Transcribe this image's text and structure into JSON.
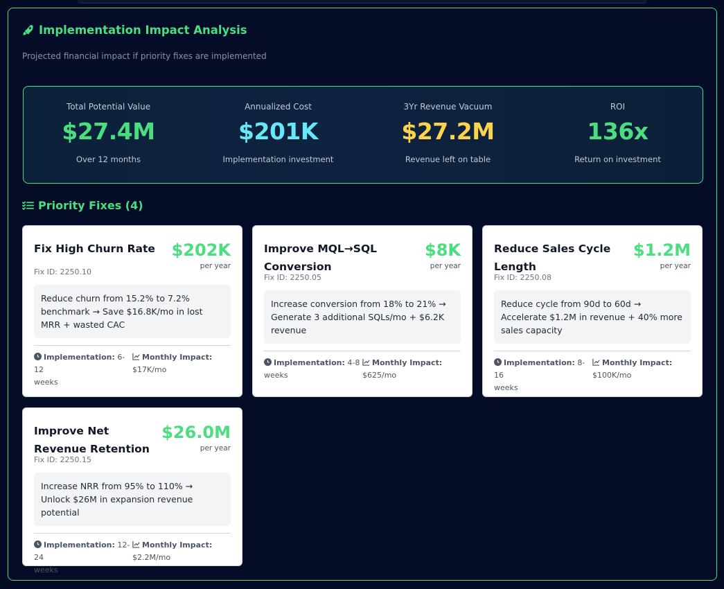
{
  "panel": {
    "title": "Implementation Impact Analysis",
    "subtitle": "Projected financial impact if priority fixes are implemented"
  },
  "metrics": [
    {
      "label": "Total Potential Value",
      "value": "$27.4M",
      "sub": "Over 12 months",
      "color": "#4ade80"
    },
    {
      "label": "Annualized Cost",
      "value": "$201K",
      "sub": "Implementation investment",
      "color": "#67e8f9"
    },
    {
      "label": "3Yr Revenue Vacuum",
      "value": "$27.2M",
      "sub": "Revenue left on table",
      "color": "#fcd34d"
    },
    {
      "label": "ROI",
      "value": "136x",
      "sub": "Return on investment",
      "color": "#4ade80"
    }
  ],
  "priority": {
    "title": "Priority Fixes (4)",
    "per_year": "per year",
    "impl_label": "Implementation:",
    "monthly_label": "Monthly Impact:",
    "fixes": [
      {
        "title": "Fix High Churn Rate",
        "value": "$202K",
        "fix_id": "Fix ID: 2250.10",
        "desc": "Reduce churn from 15.2% to 7.2% benchmark → Save $16.8K/mo in lost MRR + wasted CAC",
        "impl_value": "6-12",
        "impl_unit": "weeks",
        "monthly": "$17K/mo"
      },
      {
        "title": "Improve MQL→SQL Conversion",
        "value": "$8K",
        "fix_id": "Fix ID: 2250.05",
        "desc": "Increase conversion from 18% to 21% → Generate 3 additional SQLs/mo + $6.2K revenue",
        "impl_value": "4-8",
        "impl_unit": "weeks",
        "monthly": "$625/mo"
      },
      {
        "title": "Reduce Sales Cycle Length",
        "value": "$1.2M",
        "fix_id": "Fix ID: 2250.08",
        "desc": "Reduce cycle from 90d to 60d → Accelerate $1.2M in revenue + 40% more sales capacity",
        "impl_value": "8-16",
        "impl_unit": "weeks",
        "monthly": "$100K/mo"
      },
      {
        "title": "Improve Net Revenue Retention",
        "value": "$26.0M",
        "fix_id": "Fix ID: 2250.15",
        "desc": "Increase NRR from 95% to 110% → Unlock $26M in expansion revenue potential",
        "impl_value": "12-24",
        "impl_unit": "weeks",
        "monthly": "$2.2M/mo"
      }
    ]
  }
}
